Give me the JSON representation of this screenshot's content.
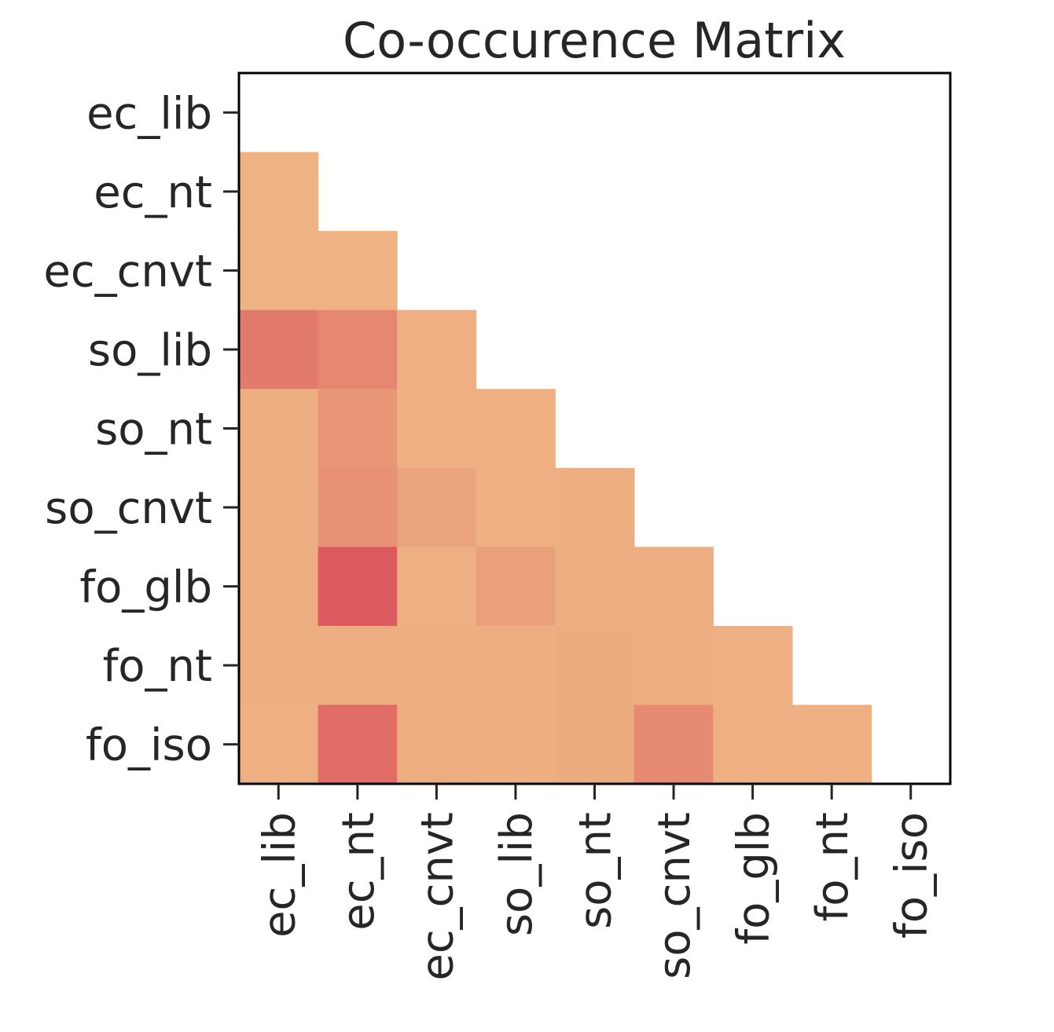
{
  "chart_data": {
    "type": "heatmap",
    "title": "Co-occurence Matrix",
    "xlabel": "",
    "ylabel": "",
    "x_categories": [
      "ec_lib",
      "ec_nt",
      "ec_cnvt",
      "so_lib",
      "so_nt",
      "so_cnvt",
      "fo_glb",
      "fo_nt",
      "fo_iso"
    ],
    "y_categories": [
      "ec_lib",
      "ec_nt",
      "ec_cnvt",
      "so_lib",
      "so_nt",
      "so_cnvt",
      "fo_glb",
      "fo_nt",
      "fo_iso"
    ],
    "mask": "upper-triangle-including-diagonal",
    "colorbar": false,
    "grid": false,
    "colors": {
      "low": "#eeb283",
      "high": "#dd5a5e"
    },
    "matrix": [
      [
        null,
        null,
        null,
        null,
        null,
        null,
        null,
        null,
        null
      ],
      [
        0.0,
        null,
        null,
        null,
        null,
        null,
        null,
        null,
        null
      ],
      [
        0.0,
        0.0,
        null,
        null,
        null,
        null,
        null,
        null,
        null
      ],
      [
        0.62,
        0.48,
        0.02,
        null,
        null,
        null,
        null,
        null,
        null
      ],
      [
        0.03,
        0.32,
        0.02,
        0.02,
        null,
        null,
        null,
        null,
        null
      ],
      [
        0.05,
        0.38,
        0.15,
        0.02,
        0.03,
        null,
        null,
        null,
        null
      ],
      [
        0.03,
        1.0,
        0.02,
        0.2,
        0.03,
        0.03,
        null,
        null,
        null
      ],
      [
        0.05,
        0.05,
        0.05,
        0.05,
        0.07,
        0.05,
        0.02,
        null,
        null
      ],
      [
        0.02,
        0.78,
        0.06,
        0.05,
        0.07,
        0.45,
        0.02,
        0.02,
        null
      ]
    ]
  }
}
